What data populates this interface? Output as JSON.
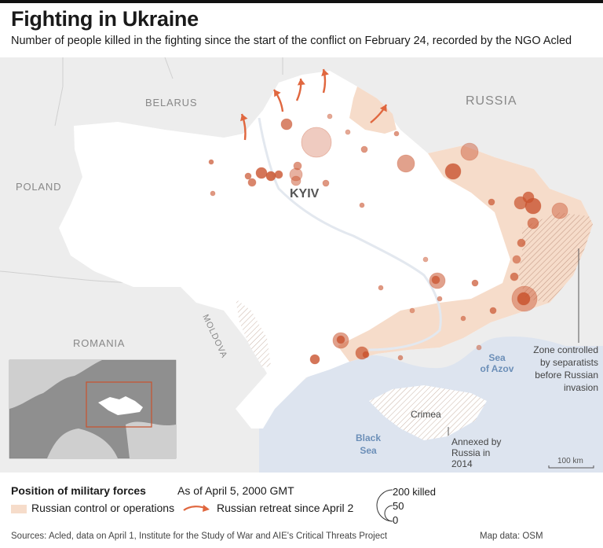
{
  "title": "Fighting in Ukraine",
  "subtitle": "Number of people killed in the fighting since the start of the conflict on February 24, recorded by the NGO Acled",
  "map_labels": {
    "belarus": "BELARUS",
    "russia": "RUSSIA",
    "poland": "POLAND",
    "romania": "ROMANIA",
    "moldova": "MOLDOVA",
    "kyiv": "KYIV",
    "sea_of_azov_1": "Sea",
    "sea_of_azov_2": "of Azov",
    "black_sea_1": "Black",
    "black_sea_2": "Sea",
    "crimea": "Crimea",
    "separatist_1": "Zone controlled",
    "separatist_2": "by separatists",
    "separatist_3": "before Russian",
    "separatist_4": "invasion",
    "annexed_1": "Annexed by",
    "annexed_2": "Russia in",
    "annexed_3": "2014",
    "scale": "100 km"
  },
  "legend": {
    "title": "Position of military forces",
    "date": "As of April 5, 2000 GMT",
    "control": "Russian control or operations",
    "retreat": "Russian retreat since April 2",
    "size_200": "200 killed",
    "size_50": "50",
    "size_0": "0"
  },
  "sources": "Sources: Acled, data on April 1, Institute for the Study of War and AIE's Critical Threats Project",
  "map_data": "Map data: OSM",
  "colors": {
    "land": "#ededed",
    "ukraine": "#ffffff",
    "sea": "#dde4ef",
    "control": "#f6dcca",
    "dot": "#c9532e",
    "arrow": "#e0673f"
  }
}
